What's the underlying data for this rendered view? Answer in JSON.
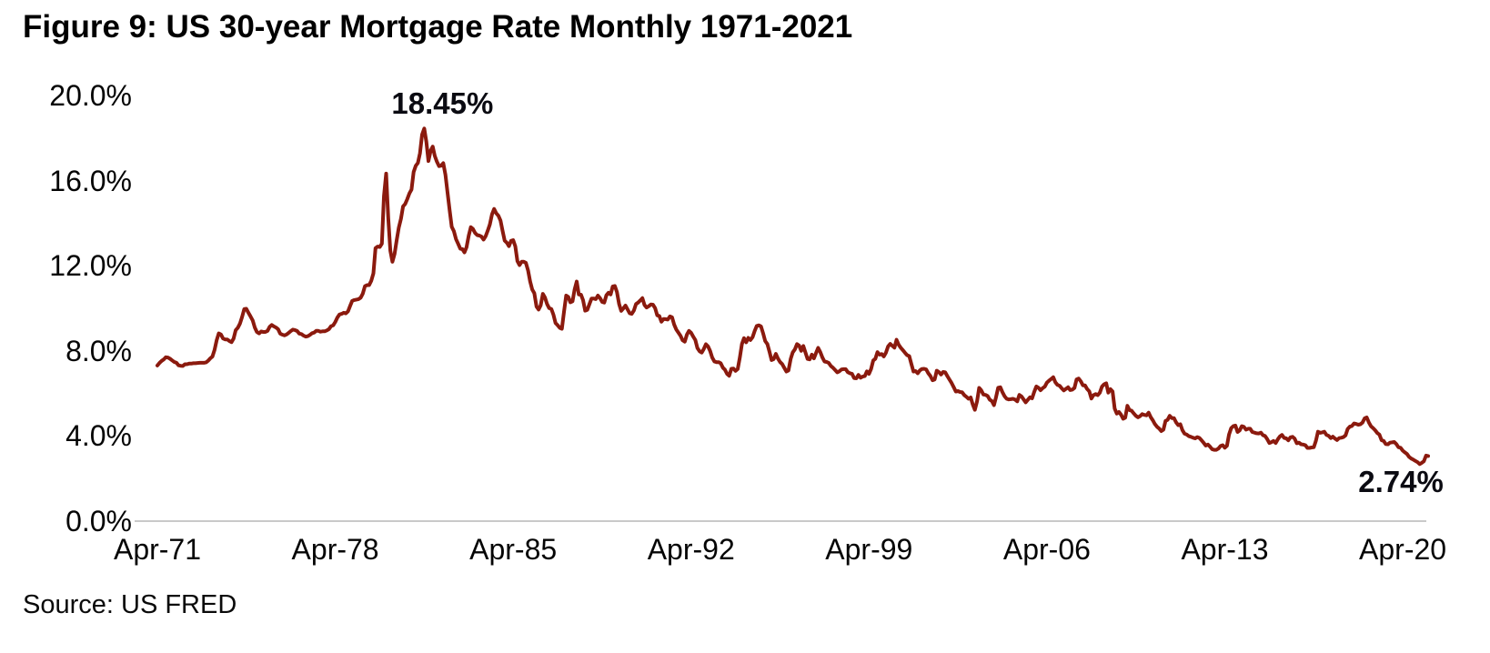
{
  "figure": {
    "title": "Figure 9: US 30-year Mortgage Rate Monthly 1971-2021",
    "source": "Source: US FRED"
  },
  "chart_data": {
    "type": "line",
    "title": "Figure 9: US 30-year Mortgage Rate Monthly 1971-2021",
    "grid": false,
    "legend": false,
    "background": "#FFFFFF",
    "axis_line_color": "#C9C9C9",
    "y_axis": {
      "unit": "%",
      "range": [
        0,
        20
      ],
      "tick_values": [
        0,
        4,
        8,
        12,
        16,
        20
      ],
      "tick_labels": [
        "0.0%",
        "4.0%",
        "8.0%",
        "12.0%",
        "16.0%",
        "20.0%"
      ]
    },
    "x_axis": {
      "tick_labels": [
        "Apr-71",
        "Apr-78",
        "Apr-85",
        "Apr-92",
        "Apr-99",
        "Apr-06",
        "Apr-13",
        "Apr-20"
      ],
      "tick_interval_years": 7
    },
    "annotations": [
      {
        "text": "18.45%",
        "value": 18.45,
        "month": "Oct-1981",
        "position": "peak"
      },
      {
        "text": "2.74%",
        "value": 2.74,
        "month": "Jan-2021",
        "position": "end"
      }
    ],
    "series": [
      {
        "name": "US 30-year mortgage rate",
        "frequency": "monthly",
        "start_month": "Apr-1971",
        "end_month": "Apr-2021",
        "color": "#8B1A0E",
        "values": [
          7.31,
          7.43,
          7.53,
          7.6,
          7.7,
          7.69,
          7.63,
          7.55,
          7.48,
          7.44,
          7.32,
          7.3,
          7.29,
          7.37,
          7.37,
          7.4,
          7.4,
          7.42,
          7.42,
          7.43,
          7.44,
          7.44,
          7.44,
          7.46,
          7.54,
          7.65,
          7.73,
          8.05,
          8.5,
          8.82,
          8.77,
          8.58,
          8.54,
          8.54,
          8.46,
          8.41,
          8.58,
          8.97,
          9.09,
          9.28,
          9.59,
          9.96,
          9.98,
          9.79,
          9.62,
          9.43,
          9.1,
          8.89,
          8.82,
          8.91,
          8.89,
          8.89,
          8.94,
          9.13,
          9.22,
          9.15,
          9.1,
          9.02,
          8.81,
          8.76,
          8.73,
          8.77,
          8.85,
          8.93,
          9.0,
          8.98,
          8.93,
          8.81,
          8.79,
          8.72,
          8.67,
          8.69,
          8.75,
          8.83,
          8.86,
          8.94,
          8.94,
          8.9,
          8.92,
          8.92,
          8.96,
          9.02,
          9.16,
          9.2,
          9.36,
          9.57,
          9.71,
          9.74,
          9.79,
          9.76,
          9.86,
          10.11,
          10.35,
          10.39,
          10.41,
          10.43,
          10.5,
          10.69,
          11.04,
          11.09,
          11.09,
          11.3,
          11.64,
          12.83,
          12.9,
          12.88,
          13.04,
          15.28,
          16.33,
          14.26,
          12.71,
          12.19,
          12.56,
          13.2,
          13.79,
          14.21,
          14.79,
          14.9,
          15.13,
          15.4,
          15.58,
          16.4,
          16.7,
          16.83,
          17.29,
          18.16,
          18.45,
          17.83,
          16.92,
          17.4,
          17.6,
          17.16,
          16.89,
          16.68,
          16.7,
          16.82,
          16.27,
          15.43,
          14.61,
          13.83,
          13.62,
          13.25,
          13.04,
          12.8,
          12.78,
          12.63,
          12.87,
          13.42,
          13.81,
          13.73,
          13.54,
          13.44,
          13.42,
          13.37,
          13.23,
          13.39,
          13.65,
          13.94,
          14.42,
          14.67,
          14.47,
          14.35,
          14.13,
          13.64,
          13.18,
          13.08,
          12.92,
          13.17,
          13.2,
          12.91,
          12.22,
          12.03,
          12.19,
          12.19,
          12.14,
          11.78,
          11.26,
          10.88,
          10.71,
          10.08,
          9.94,
          10.14,
          10.68,
          10.51,
          10.2,
          10.01,
          9.97,
          9.7,
          9.31,
          9.2,
          9.08,
          9.04,
          9.83,
          10.6,
          10.54,
          10.28,
          10.33,
          10.89,
          11.26,
          10.65,
          10.64,
          10.38,
          9.89,
          9.93,
          10.2,
          10.46,
          10.46,
          10.43,
          10.6,
          10.48,
          10.3,
          10.27,
          10.61,
          10.73,
          10.65,
          11.03,
          11.05,
          10.77,
          10.2,
          9.88,
          9.99,
          10.13,
          9.95,
          9.77,
          9.74,
          9.9,
          10.2,
          10.27,
          10.37,
          10.48,
          10.16,
          10.04,
          10.1,
          10.18,
          10.17,
          10.01,
          9.67,
          9.64,
          9.37,
          9.5,
          9.49,
          9.47,
          9.62,
          9.58,
          9.24,
          9.01,
          8.86,
          8.71,
          8.5,
          8.43,
          8.76,
          8.94,
          8.85,
          8.67,
          8.51,
          8.13,
          7.98,
          7.92,
          8.09,
          8.31,
          8.21,
          7.99,
          7.68,
          7.5,
          7.47,
          7.47,
          7.42,
          7.21,
          7.11,
          6.92,
          6.83,
          7.16,
          7.17,
          7.06,
          7.15,
          7.68,
          8.32,
          8.6,
          8.4,
          8.61,
          8.51,
          8.64,
          8.93,
          9.17,
          9.2,
          9.15,
          8.83,
          8.46,
          8.32,
          7.96,
          7.57,
          7.61,
          7.86,
          7.64,
          7.48,
          7.38,
          7.2,
          7.03,
          7.08,
          7.62,
          7.93,
          8.07,
          8.32,
          8.25,
          8.0,
          8.23,
          7.92,
          7.62,
          7.6,
          7.82,
          7.65,
          7.9,
          8.14,
          7.94,
          7.69,
          7.5,
          7.48,
          7.43,
          7.29,
          7.21,
          7.1,
          6.99,
          7.04,
          7.13,
          7.14,
          7.14,
          7.0,
          6.95,
          6.92,
          6.72,
          6.71,
          6.87,
          6.74,
          6.79,
          6.81,
          7.04,
          6.92,
          7.15,
          7.55,
          7.63,
          7.94,
          7.82,
          7.85,
          7.74,
          7.91,
          8.21,
          8.33,
          8.24,
          8.15,
          8.52,
          8.29,
          8.15,
          8.03,
          7.91,
          7.8,
          7.75,
          7.38,
          7.03,
          7.05,
          6.95,
          7.08,
          7.15,
          7.16,
          7.13,
          6.95,
          6.82,
          6.62,
          6.66,
          7.07,
          7.0,
          6.89,
          7.01,
          6.99,
          6.81,
          6.65,
          6.49,
          6.29,
          6.09,
          6.11,
          6.07,
          6.05,
          5.92,
          5.84,
          5.75,
          5.81,
          5.48,
          5.23,
          5.63,
          6.26,
          6.15,
          5.95,
          5.93,
          5.88,
          5.71,
          5.64,
          5.45,
          5.83,
          6.27,
          6.29,
          6.06,
          5.87,
          5.75,
          5.72,
          5.73,
          5.75,
          5.71,
          5.63,
          5.93,
          5.86,
          5.72,
          5.58,
          5.7,
          5.82,
          5.77,
          6.07,
          6.33,
          6.27,
          6.15,
          6.25,
          6.32,
          6.51,
          6.6,
          6.68,
          6.76,
          6.52,
          6.4,
          6.36,
          6.24,
          6.14,
          6.22,
          6.29,
          6.16,
          6.18,
          6.26,
          6.66,
          6.7,
          6.57,
          6.38,
          6.38,
          6.21,
          6.1,
          5.76,
          5.92,
          5.97,
          5.92,
          6.04,
          6.32,
          6.43,
          6.48,
          6.04,
          6.2,
          6.09,
          5.29,
          5.05,
          5.13,
          5.0,
          4.81,
          4.86,
          5.42,
          5.22,
          5.19,
          5.06,
          4.95,
          4.88,
          4.93,
          5.03,
          4.99,
          4.97,
          5.1,
          4.89,
          4.74,
          4.56,
          4.43,
          4.35,
          4.23,
          4.3,
          4.71,
          4.76,
          4.95,
          4.84,
          4.84,
          4.64,
          4.51,
          4.55,
          4.27,
          4.11,
          4.07,
          3.99,
          3.96,
          3.92,
          3.89,
          3.95,
          3.91,
          3.8,
          3.68,
          3.55,
          3.6,
          3.5,
          3.38,
          3.35,
          3.35,
          3.41,
          3.53,
          3.57,
          3.45,
          3.54,
          4.07,
          4.37,
          4.46,
          4.49,
          4.19,
          4.26,
          4.46,
          4.43,
          4.3,
          4.34,
          4.34,
          4.19,
          4.16,
          4.13,
          4.12,
          4.16,
          4.04,
          4.0,
          3.86,
          3.67,
          3.71,
          3.77,
          3.67,
          3.84,
          3.98,
          4.05,
          3.91,
          3.89,
          3.8,
          3.94,
          3.96,
          3.87,
          3.66,
          3.69,
          3.61,
          3.6,
          3.57,
          3.44,
          3.44,
          3.46,
          3.47,
          3.77,
          4.2,
          4.15,
          4.17,
          4.2,
          4.05,
          4.01,
          3.9,
          3.97,
          3.88,
          3.81,
          3.9,
          3.92,
          3.95,
          4.03,
          4.33,
          4.44,
          4.47,
          4.59,
          4.57,
          4.53,
          4.55,
          4.63,
          4.83,
          4.87,
          4.64,
          4.46,
          4.37,
          4.27,
          4.14,
          4.07,
          3.8,
          3.77,
          3.62,
          3.61,
          3.69,
          3.7,
          3.72,
          3.62,
          3.47,
          3.45,
          3.31,
          3.23,
          3.16,
          3.02,
          2.94,
          2.89,
          2.83,
          2.77,
          2.68,
          2.74,
          2.81,
          3.08,
          3.06
        ]
      }
    ]
  }
}
